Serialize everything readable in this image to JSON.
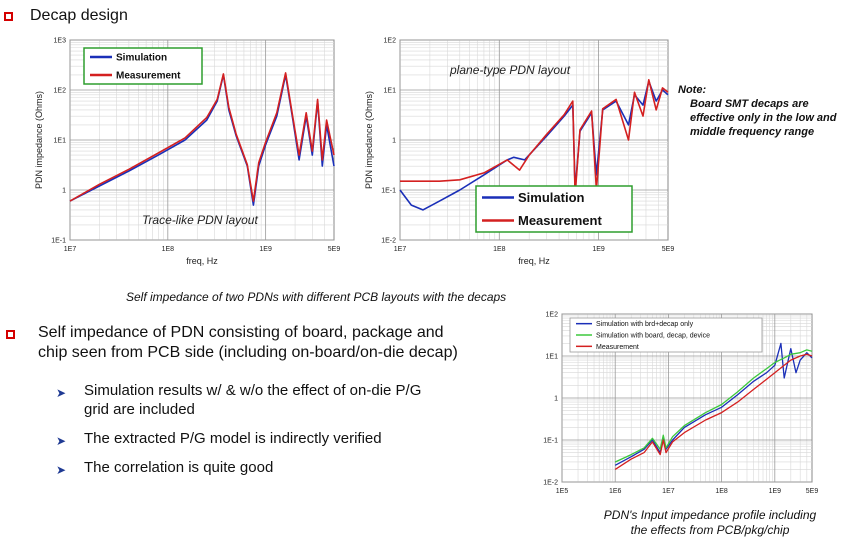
{
  "section1": {
    "title": "Decap design"
  },
  "chart_a": {
    "legend": [
      "Simulation",
      "Measurement"
    ],
    "annotation": "Trace-like PDN layout",
    "ylabel": "PDN impedance (Ohms)",
    "xlabel": "freq, Hz",
    "yticks": [
      "1E3",
      "1E2",
      "1E1",
      "1",
      "1E-1"
    ],
    "xticks": [
      "1E7",
      "1E8",
      "1E9",
      "5E9"
    ]
  },
  "chart_b": {
    "legend": [
      "Simulation",
      "Measurement"
    ],
    "annotation": "plane-type PDN layout",
    "ylabel": "PDN impedance (Ohms)",
    "xlabel": "freq, Hz",
    "yticks": [
      "1E2",
      "1E1",
      "1",
      "1E-1",
      "1E-2"
    ],
    "xticks": [
      "1E7",
      "1E8",
      "1E9",
      "5E9"
    ]
  },
  "note": {
    "title": "Note:",
    "lines": [
      "Board SMT decaps are",
      "effective only in the low and",
      "middle frequency range"
    ]
  },
  "caption1": "Self impedance of two PDNs with different PCB layouts with the decaps",
  "section2": {
    "title_line1": "Self impedance of PDN consisting of board, package and",
    "title_line2": "chip seen from PCB side (including on-board/on-die decap)",
    "sub1_line1": "Simulation results w/ & w/o the effect of on-die P/G",
    "sub1_line2": "grid are included",
    "sub2": "The extracted P/G model is indirectly verified",
    "sub3": "The correlation is quite good"
  },
  "chart_c": {
    "legend": [
      "Simulation with brd+decap only",
      "Simulation with board, decap, device",
      "Measurement"
    ],
    "yticks": [
      "1E2",
      "1E1",
      "1",
      "1E-1",
      "1E-2"
    ],
    "xticks": [
      "1E5",
      "1E6",
      "1E7",
      "1E8",
      "1E9",
      "5E9"
    ]
  },
  "caption2_line1": "PDN's Input impedance profile including",
  "caption2_line2": "the effects from PCB/pkg/chip",
  "colors": {
    "blue": "#1a2fb8",
    "red": "#d42020",
    "green": "#3cc83c",
    "bullet": "#d40000"
  },
  "chart_data": [
    {
      "type": "line",
      "x_scale": "log",
      "y_scale": "log",
      "xlim": [
        10000000.0,
        5000000000.0
      ],
      "ylim": [
        0.1,
        1000
      ],
      "xlabel": "freq, Hz",
      "ylabel": "PDN impedance (Ohms)",
      "grid": true,
      "legend": "top-left",
      "series": [
        {
          "name": "Simulation",
          "color": "#1a2fb8",
          "x": [
            10000000.0,
            20000000.0,
            40000000.0,
            80000000.0,
            150000000.0,
            250000000.0,
            320000000.0,
            370000000.0,
            420000000.0,
            500000000.0,
            650000000.0,
            750000000.0,
            850000000.0,
            1000000000.0,
            1300000000.0,
            1600000000.0,
            1900000000.0,
            2200000000.0,
            2600000000.0,
            3000000000.0,
            3400000000.0,
            3800000000.0,
            4200000000.0,
            5000000000.0
          ],
          "y": [
            0.6,
            1.2,
            2.4,
            5,
            10,
            25,
            60,
            200,
            40,
            12,
            3,
            0.5,
            3,
            8,
            30,
            200,
            25,
            4,
            30,
            5,
            60,
            3,
            20,
            3
          ]
        },
        {
          "name": "Measurement",
          "color": "#d42020",
          "x": [
            10000000.0,
            20000000.0,
            40000000.0,
            80000000.0,
            150000000.0,
            250000000.0,
            320000000.0,
            370000000.0,
            420000000.0,
            500000000.0,
            650000000.0,
            750000000.0,
            850000000.0,
            1000000000.0,
            1300000000.0,
            1600000000.0,
            1900000000.0,
            2200000000.0,
            2600000000.0,
            3000000000.0,
            3400000000.0,
            3800000000.0,
            4200000000.0,
            5000000000.0
          ],
          "y": [
            0.6,
            1.3,
            2.6,
            5.5,
            11,
            28,
            65,
            210,
            45,
            13,
            3.2,
            0.6,
            3.5,
            9,
            35,
            220,
            28,
            5,
            35,
            6,
            65,
            4,
            25,
            5
          ]
        }
      ]
    },
    {
      "type": "line",
      "x_scale": "log",
      "y_scale": "log",
      "xlim": [
        10000000.0,
        5000000000.0
      ],
      "ylim": [
        0.01,
        100
      ],
      "xlabel": "freq, Hz",
      "ylabel": "PDN impedance (Ohms)",
      "grid": true,
      "legend": "bottom-right",
      "series": [
        {
          "name": "Simulation",
          "color": "#1a2fb8",
          "x": [
            10000000.0,
            13000000.0,
            17000000.0,
            25000000.0,
            40000000.0,
            70000000.0,
            120000000.0,
            140000000.0,
            180000000.0,
            300000000.0,
            450000000.0,
            550000000.0,
            580000000.0,
            650000000.0,
            850000000.0,
            950000000.0,
            1100000000.0,
            1500000000.0,
            2000000000.0,
            2300000000.0,
            2800000000.0,
            3200000000.0,
            3800000000.0,
            4400000000.0,
            5000000000.0
          ],
          "y": [
            0.1,
            0.05,
            0.04,
            0.06,
            0.1,
            0.2,
            0.4,
            0.45,
            0.4,
            1.2,
            3,
            5,
            0.1,
            1.5,
            3.5,
            0.2,
            4,
            6,
            2,
            8,
            5,
            15,
            6,
            10,
            8
          ]
        },
        {
          "name": "Measurement",
          "color": "#d42020",
          "x": [
            10000000.0,
            15000000.0,
            25000000.0,
            40000000.0,
            70000000.0,
            120000000.0,
            160000000.0,
            200000000.0,
            300000000.0,
            450000000.0,
            550000000.0,
            580000000.0,
            650000000.0,
            850000000.0,
            950000000.0,
            1100000000.0,
            1500000000.0,
            2000000000.0,
            2300000000.0,
            2800000000.0,
            3200000000.0,
            3800000000.0,
            4400000000.0,
            5000000000.0
          ],
          "y": [
            0.15,
            0.15,
            0.15,
            0.16,
            0.22,
            0.4,
            0.25,
            0.5,
            1.3,
            3.2,
            6,
            0.08,
            1.6,
            3.8,
            0.1,
            4.2,
            6.5,
            1,
            9,
            3,
            16,
            4,
            11,
            9
          ]
        }
      ]
    },
    {
      "type": "line",
      "x_scale": "log",
      "y_scale": "log",
      "xlim": [
        100000.0,
        5000000000.0
      ],
      "ylim": [
        0.01,
        100
      ],
      "grid": true,
      "legend": "top-left",
      "series": [
        {
          "name": "Simulation with brd+decap only",
          "color": "#1a2fb8",
          "x": [
            1000000.0,
            2000000.0,
            3500000.0,
            5000000.0,
            7000000.0,
            8000000.0,
            9000000.0,
            12000000.0,
            20000000.0,
            50000000.0,
            100000000.0,
            200000000.0,
            400000000.0,
            700000000.0,
            1000000000.0,
            1300000000.0,
            1500000000.0,
            2000000000.0,
            2500000000.0,
            3000000000.0,
            4000000000.0,
            5000000000.0
          ],
          "y": [
            0.025,
            0.04,
            0.06,
            0.1,
            0.05,
            0.12,
            0.06,
            0.1,
            0.2,
            0.4,
            0.6,
            1.2,
            2.5,
            4,
            6,
            20,
            3,
            15,
            4,
            8,
            12,
            9
          ]
        },
        {
          "name": "Simulation with board, decap, device",
          "color": "#3cc83c",
          "x": [
            1000000.0,
            2000000.0,
            3500000.0,
            5000000.0,
            7000000.0,
            8000000.0,
            9000000.0,
            12000000.0,
            20000000.0,
            50000000.0,
            100000000.0,
            200000000.0,
            400000000.0,
            700000000.0,
            1000000000.0,
            1500000000.0,
            2000000000.0,
            3000000000.0,
            4000000000.0,
            5000000000.0
          ],
          "y": [
            0.03,
            0.045,
            0.065,
            0.11,
            0.06,
            0.13,
            0.065,
            0.12,
            0.22,
            0.45,
            0.7,
            1.4,
            3,
            5,
            7,
            9,
            11,
            12,
            14,
            13
          ]
        },
        {
          "name": "Measurement",
          "color": "#d42020",
          "x": [
            1000000.0,
            2000000.0,
            3500000.0,
            5000000.0,
            7000000.0,
            8000000.0,
            9000000.0,
            12000000.0,
            20000000.0,
            50000000.0,
            100000000.0,
            200000000.0,
            400000000.0,
            700000000.0,
            1000000000.0,
            1500000000.0,
            2000000000.0,
            3000000000.0,
            4000000000.0,
            5000000000.0
          ],
          "y": [
            0.02,
            0.035,
            0.05,
            0.09,
            0.045,
            0.1,
            0.05,
            0.09,
            0.15,
            0.3,
            0.45,
            0.8,
            1.6,
            2.8,
            4,
            6,
            8,
            10,
            11,
            10
          ]
        }
      ]
    }
  ]
}
